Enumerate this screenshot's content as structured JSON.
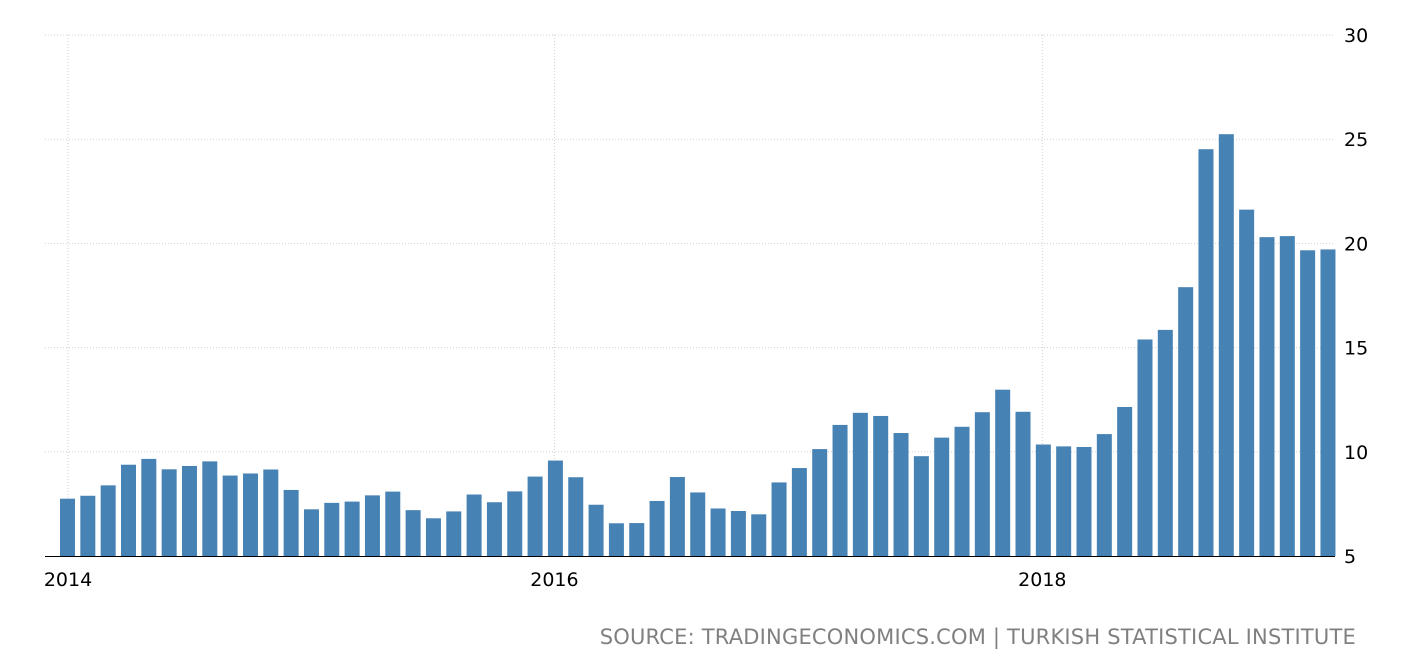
{
  "chart_data": {
    "type": "bar",
    "title": "",
    "xlabel": "",
    "ylabel": "",
    "ylim": [
      5,
      30
    ],
    "yticks": [
      5,
      10,
      15,
      20,
      25,
      30
    ],
    "y_axis_side": "right",
    "xticks": [
      {
        "label": "2014",
        "index": 0
      },
      {
        "label": "2016",
        "index": 24
      },
      {
        "label": "2018",
        "index": 48
      }
    ],
    "grid": true,
    "bar_color": "#4682b4",
    "grid_color": "#d0d0d0",
    "x": [
      "2014-01",
      "2014-02",
      "2014-03",
      "2014-04",
      "2014-05",
      "2014-06",
      "2014-07",
      "2014-08",
      "2014-09",
      "2014-10",
      "2014-11",
      "2014-12",
      "2015-01",
      "2015-02",
      "2015-03",
      "2015-04",
      "2015-05",
      "2015-06",
      "2015-07",
      "2015-08",
      "2015-09",
      "2015-10",
      "2015-11",
      "2015-12",
      "2016-01",
      "2016-02",
      "2016-03",
      "2016-04",
      "2016-05",
      "2016-06",
      "2016-07",
      "2016-08",
      "2016-09",
      "2016-10",
      "2016-11",
      "2016-12",
      "2017-01",
      "2017-02",
      "2017-03",
      "2017-04",
      "2017-05",
      "2017-06",
      "2017-07",
      "2017-08",
      "2017-09",
      "2017-10",
      "2017-11",
      "2017-12",
      "2018-01",
      "2018-02",
      "2018-03",
      "2018-04",
      "2018-05",
      "2018-06",
      "2018-07",
      "2018-08",
      "2018-09",
      "2018-10",
      "2018-11",
      "2018-12",
      "2019-01",
      "2019-02",
      "2019-03"
    ],
    "values": [
      7.75,
      7.89,
      8.39,
      9.38,
      9.66,
      9.16,
      9.32,
      9.54,
      8.86,
      8.96,
      9.15,
      8.17,
      7.24,
      7.55,
      7.61,
      7.91,
      8.09,
      7.2,
      6.81,
      7.14,
      7.95,
      7.58,
      8.1,
      8.81,
      9.58,
      8.78,
      7.46,
      6.57,
      6.58,
      7.64,
      8.79,
      8.05,
      7.28,
      7.16,
      7.0,
      8.53,
      9.22,
      10.13,
      11.29,
      11.87,
      11.72,
      10.9,
      9.79,
      10.68,
      11.2,
      11.9,
      12.98,
      11.92,
      10.35,
      10.26,
      10.23,
      10.85,
      12.15,
      15.39,
      15.85,
      17.9,
      24.52,
      25.24,
      21.62,
      20.3,
      20.35,
      19.67,
      19.71
    ]
  },
  "source_text": "SOURCE: TRADINGECONOMICS.COM | TURKISH STATISTICAL INSTITUTE"
}
